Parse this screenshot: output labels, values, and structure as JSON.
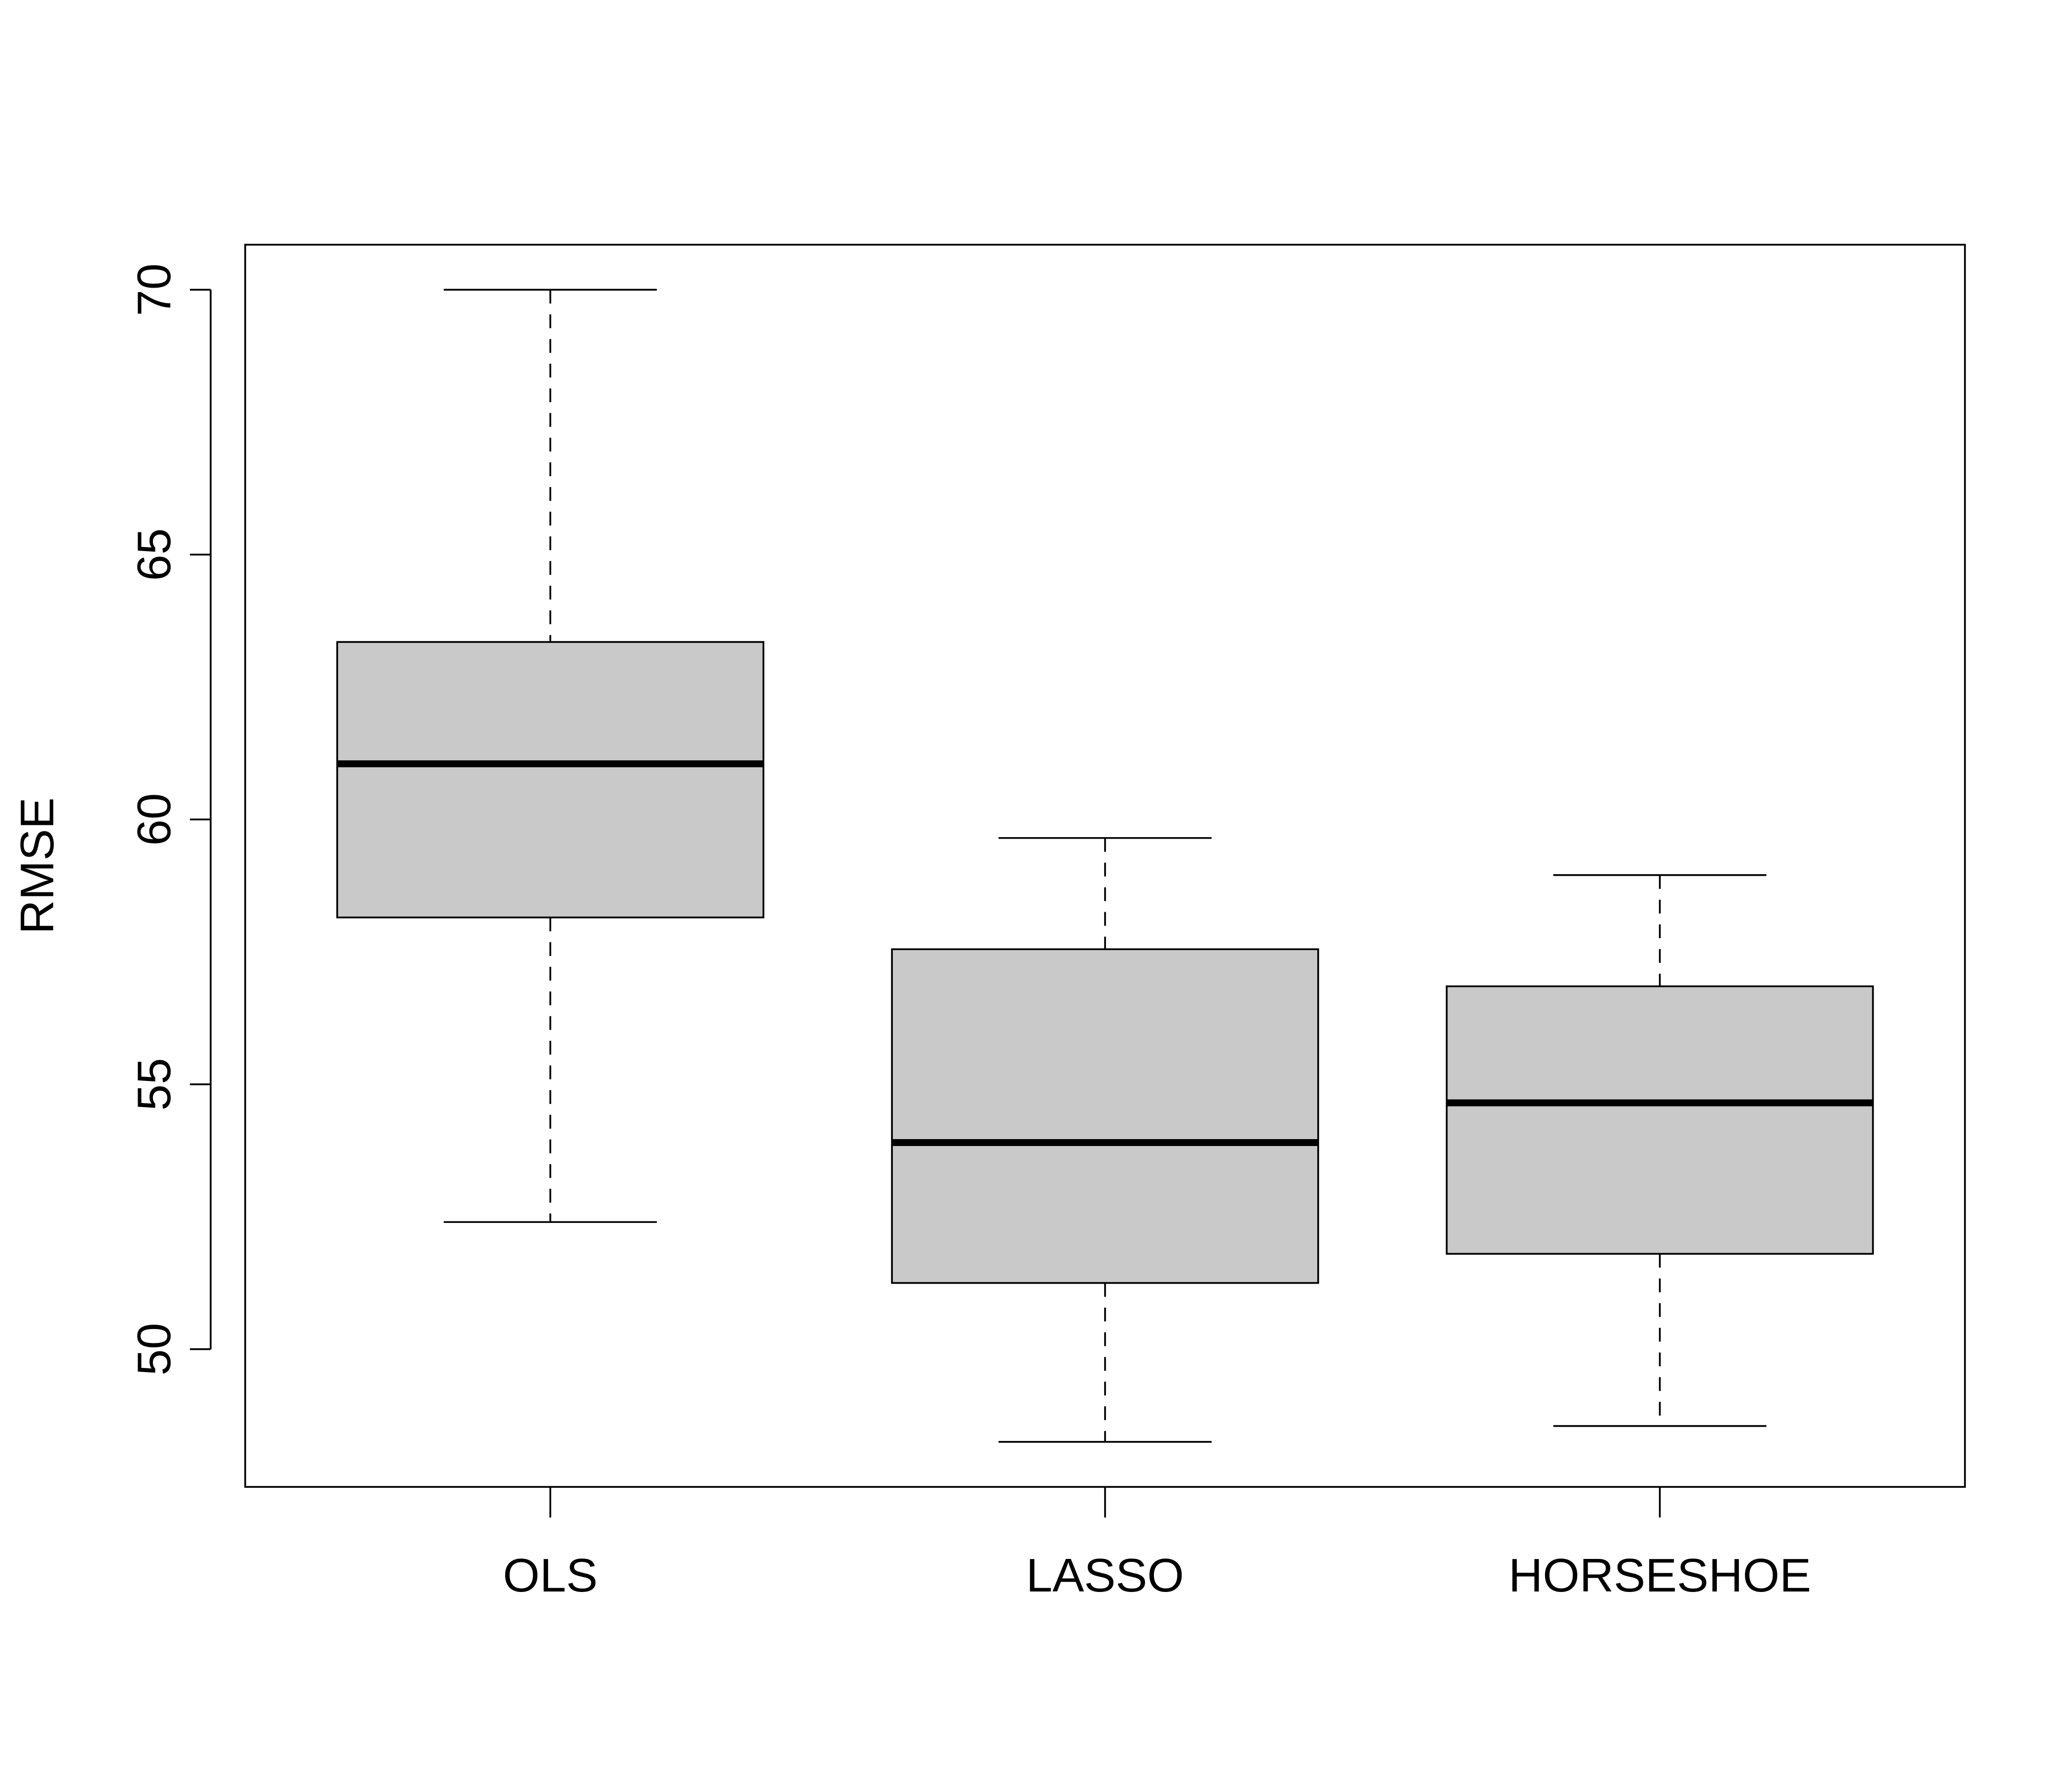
{
  "chart_data": {
    "type": "box",
    "title": "",
    "xlabel": "",
    "ylabel": "RMSE",
    "categories": [
      "OLS",
      "LASSO",
      "HORSESHOE"
    ],
    "ylim": [
      47.4,
      70.85
    ],
    "yticks": [
      50,
      55,
      60,
      65,
      70
    ],
    "grid": false,
    "fill_color": "#c9c9c9",
    "boxes": [
      {
        "name": "OLS",
        "whisker_low": 52.4,
        "q1": 58.15,
        "median": 61.05,
        "q3": 63.35,
        "whisker_high": 70.0
      },
      {
        "name": "LASSO",
        "whisker_low": 48.25,
        "q1": 51.25,
        "median": 53.9,
        "q3": 57.55,
        "whisker_high": 59.65
      },
      {
        "name": "HORSESHOE",
        "whisker_low": 48.55,
        "q1": 51.8,
        "median": 54.65,
        "q3": 56.85,
        "whisker_high": 58.95
      }
    ]
  }
}
